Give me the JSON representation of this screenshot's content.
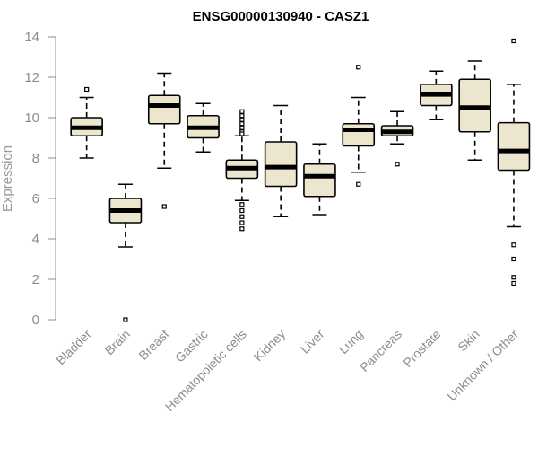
{
  "chart_data": {
    "type": "boxplot",
    "title": "ENSG00000130940 - CASZ1",
    "xlabel": "",
    "ylabel": "Expression",
    "ylim": [
      0,
      14
    ],
    "yticks": [
      0,
      2,
      4,
      6,
      8,
      10,
      12,
      14
    ],
    "box_fill": "#ece6cf",
    "box_stroke": "#000000",
    "axis_color": "#8c8c8c",
    "categories": [
      "Bladder",
      "Brain",
      "Breast",
      "Gastric",
      "Hematopoietic cells",
      "Kidney",
      "Liver",
      "Lung",
      "Pancreas",
      "Prostate",
      "Skin",
      "Unknown / Other"
    ],
    "boxes": [
      {
        "category": "Bladder",
        "whislo": 8.0,
        "q1": 9.1,
        "med": 9.5,
        "q3": 10.0,
        "whishi": 11.0,
        "fliers": [
          11.4
        ]
      },
      {
        "category": "Brain",
        "whislo": 3.6,
        "q1": 4.8,
        "med": 5.4,
        "q3": 6.0,
        "whishi": 6.7,
        "fliers": [
          0.0
        ]
      },
      {
        "category": "Breast",
        "whislo": 7.5,
        "q1": 9.7,
        "med": 10.6,
        "q3": 11.1,
        "whishi": 12.2,
        "fliers": [
          5.6
        ]
      },
      {
        "category": "Gastric",
        "whislo": 8.3,
        "q1": 9.0,
        "med": 9.5,
        "q3": 10.1,
        "whishi": 10.7,
        "fliers": []
      },
      {
        "category": "Hematopoietic cells",
        "whislo": 5.9,
        "q1": 7.0,
        "med": 7.5,
        "q3": 7.9,
        "whishi": 9.1,
        "fliers": [
          10.3,
          10.1,
          9.9,
          9.7,
          9.5,
          9.3,
          9.2,
          5.7,
          5.4,
          5.1,
          4.8,
          4.5
        ]
      },
      {
        "category": "Kidney",
        "whislo": 5.1,
        "q1": 6.6,
        "med": 7.55,
        "q3": 8.8,
        "whishi": 10.6,
        "fliers": []
      },
      {
        "category": "Liver",
        "whislo": 5.2,
        "q1": 6.1,
        "med": 7.1,
        "q3": 7.7,
        "whishi": 8.7,
        "fliers": []
      },
      {
        "category": "Lung",
        "whislo": 7.3,
        "q1": 8.6,
        "med": 9.4,
        "q3": 9.7,
        "whishi": 11.0,
        "fliers": [
          12.5,
          6.7
        ]
      },
      {
        "category": "Pancreas",
        "whislo": 8.7,
        "q1": 9.1,
        "med": 9.3,
        "q3": 9.6,
        "whishi": 10.3,
        "fliers": [
          7.7
        ]
      },
      {
        "category": "Prostate",
        "whislo": 9.9,
        "q1": 10.6,
        "med": 11.15,
        "q3": 11.65,
        "whishi": 12.3,
        "fliers": []
      },
      {
        "category": "Skin",
        "whislo": 7.9,
        "q1": 9.3,
        "med": 10.5,
        "q3": 11.9,
        "whishi": 12.8,
        "fliers": []
      },
      {
        "category": "Unknown / Other",
        "whislo": 4.6,
        "q1": 7.4,
        "med": 8.35,
        "q3": 9.75,
        "whishi": 11.65,
        "fliers": [
          13.8,
          3.7,
          3.0,
          2.1,
          1.8
        ]
      }
    ]
  }
}
